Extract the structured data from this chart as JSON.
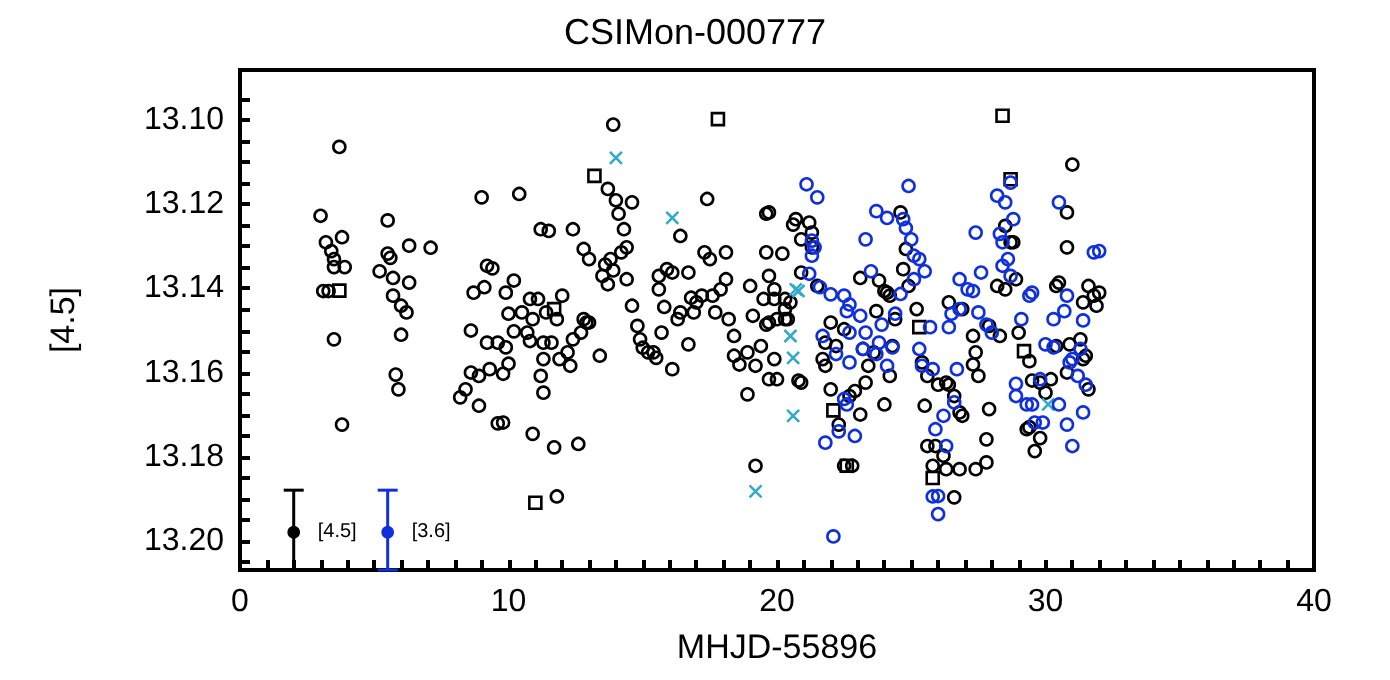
{
  "chart_data": {
    "type": "scatter",
    "title": "CSIMon-000777",
    "xlabel": "MHJD-55896",
    "ylabel": "[4.5]",
    "xlim": [
      0,
      40
    ],
    "xticks": [
      0,
      {
        "value": 1,
        "label": null
      },
      {
        "value": 2,
        "label": null
      },
      {
        "value": 3,
        "label": null
      },
      {
        "value": 4,
        "label": null
      },
      {
        "value": 5,
        "label": null
      },
      {
        "value": 6,
        "label": null
      },
      {
        "value": 7,
        "label": null
      },
      {
        "value": 8,
        "label": null
      },
      {
        "value": 9,
        "label": null
      },
      10,
      {
        "value": 11,
        "label": null
      },
      {
        "value": 12,
        "label": null
      },
      {
        "value": 13,
        "label": null
      },
      {
        "value": 14,
        "label": null
      },
      {
        "value": 15,
        "label": null
      },
      {
        "value": 16,
        "label": null
      },
      {
        "value": 17,
        "label": null
      },
      {
        "value": 18,
        "label": null
      },
      {
        "value": 19,
        "label": null
      },
      20,
      {
        "value": 21,
        "label": null
      },
      {
        "value": 22,
        "label": null
      },
      {
        "value": 23,
        "label": null
      },
      {
        "value": 24,
        "label": null
      },
      {
        "value": 25,
        "label": null
      },
      {
        "value": 26,
        "label": null
      },
      {
        "value": 27,
        "label": null
      },
      {
        "value": 28,
        "label": null
      },
      {
        "value": 29,
        "label": null
      },
      30,
      {
        "value": 31,
        "label": null
      },
      {
        "value": 32,
        "label": null
      },
      {
        "value": 33,
        "label": null
      },
      {
        "value": 34,
        "label": null
      },
      {
        "value": 35,
        "label": null
      },
      {
        "value": 36,
        "label": null
      },
      {
        "value": 37,
        "label": null
      },
      {
        "value": 38,
        "label": null
      },
      {
        "value": 39,
        "label": null
      },
      40
    ],
    "ylim": [
      13.207,
      13.088
    ],
    "yticks": [
      {
        "value": 13.095,
        "label": null
      },
      {
        "value": 13.1,
        "label": "13.10"
      },
      {
        "value": 13.105,
        "label": null
      },
      {
        "value": 13.11,
        "label": null
      },
      {
        "value": 13.115,
        "label": null
      },
      {
        "value": 13.12,
        "label": "13.12"
      },
      {
        "value": 13.125,
        "label": null
      },
      {
        "value": 13.13,
        "label": null
      },
      {
        "value": 13.135,
        "label": null
      },
      {
        "value": 13.14,
        "label": "13.14"
      },
      {
        "value": 13.145,
        "label": null
      },
      {
        "value": 13.15,
        "label": null
      },
      {
        "value": 13.155,
        "label": null
      },
      {
        "value": 13.16,
        "label": "13.16"
      },
      {
        "value": 13.165,
        "label": null
      },
      {
        "value": 13.17,
        "label": null
      },
      {
        "value": 13.175,
        "label": null
      },
      {
        "value": 13.18,
        "label": "13.18"
      },
      {
        "value": 13.185,
        "label": null
      },
      {
        "value": 13.19,
        "label": null
      },
      {
        "value": 13.195,
        "label": null
      },
      {
        "value": 13.2,
        "label": "13.20"
      },
      {
        "value": 13.205,
        "label": null
      }
    ],
    "grid": false,
    "annotations": [
      "[4.5]",
      "[3.6]"
    ],
    "series": [
      {
        "color": "#000000",
        "marker": "circle",
        "x": [
          3.0,
          3.2,
          3.3,
          3.1,
          3.5,
          3.4,
          3.8,
          3.9,
          3.5,
          3.7,
          3.5,
          3.8,
          5.5,
          5.5,
          5.6,
          5.2,
          5.7,
          5.7,
          6.0,
          6.2,
          6.0,
          6.3,
          6.3,
          5.8,
          5.9,
          7.1,
          8.2,
          8.4,
          8.6,
          8.6,
          8.7,
          9.1,
          9.2,
          9.4,
          9.2,
          9.6,
          9.9,
          10.0,
          8.9,
          9.3,
          9.9,
          10.2,
          9.8,
          10.2,
          10.0,
          9.8,
          8.9,
          9.6,
          9.0,
          10.4,
          10.5,
          10.7,
          10.8,
          10.9,
          10.8,
          11.1,
          11.3,
          11.2,
          11.5,
          11.4,
          11.8,
          11.6,
          12.0,
          12.2,
          11.9,
          12.3,
          12.4,
          12.7,
          12.8,
          12.9,
          12.4,
          12.8,
          13.0,
          13.4,
          13.0,
          10.9,
          11.3,
          11.7,
          12.6,
          11.8,
          11.2,
          11.3,
          13.7,
          13.9,
          14.0,
          14.1,
          14.3,
          14.4,
          14.2,
          13.8,
          13.6,
          13.9,
          13.5,
          13.7,
          14.4,
          14.6,
          14.6,
          14.8,
          14.9,
          15.0,
          15.2,
          15.4,
          15.5,
          15.6,
          15.9,
          16.1,
          15.8,
          15.6,
          15.7,
          16.1,
          16.3,
          16.4,
          16.4,
          16.8,
          16.9,
          16.7,
          16.7,
          17.0,
          17.2,
          17.4,
          17.3,
          17.5,
          17.6,
          17.7,
          17.9,
          18.1,
          18.1,
          18.2,
          18.4,
          18.4,
          18.6,
          18.9,
          19.0,
          19.1,
          19.2,
          19.4,
          19.6,
          19.7,
          19.7,
          19.2,
          18.9,
          19.9,
          20.2,
          20.3,
          20.0,
          20.8,
          20.6,
          19.6,
          19.6,
          19.7,
          19.5,
          19.9,
          20.3,
          20.5,
          20.3,
          20.4,
          19.7,
          20.7,
          21.2,
          21.3,
          20.9,
          21.3,
          20.9,
          21.5,
          19.9,
          20.0,
          20.9,
          22.0,
          22.5,
          21.8,
          22.2,
          21.7,
          21.8,
          22.0,
          22.3,
          22.7,
          22.9,
          23.1,
          23.3,
          23.4,
          23.2,
          23.6,
          23.7,
          24.0,
          24.1,
          24.2,
          23.1,
          23.8,
          24.6,
          24.8,
          24.7,
          24.9,
          24.4,
          24.3,
          24.2,
          24.0,
          25.2,
          25.4,
          25.6,
          25.5,
          26.0,
          26.3,
          26.4,
          26.6,
          26.8,
          26.9,
          25.6,
          25.9,
          25.8,
          26.2,
          26.3,
          26.8,
          27.4,
          27.8,
          26.6,
          26.4,
          26.9,
          27.3,
          27.4,
          27.3,
          27.5,
          27.9,
          27.8,
          27.9,
          28.3,
          28.2,
          28.5,
          28.9,
          28.5,
          28.7,
          28.8,
          29.0,
          29.4,
          29.5,
          29.8,
          29.3,
          29.4,
          29.6,
          29.8,
          30.0,
          30.2,
          30.4,
          30.4,
          30.5,
          30.8,
          30.8,
          31.0,
          30.8,
          30.9,
          31.3,
          31.4,
          31.5,
          31.6,
          31.4,
          31.6,
          31.8,
          31.9,
          32.0,
          22.5,
          22.8
        ],
        "values": [
          13.1227,
          13.129,
          13.1406,
          13.1406,
          13.133,
          13.1311,
          13.1278,
          13.1349,
          13.1349,
          13.1063,
          13.1521,
          13.1724,
          13.1238,
          13.1317,
          13.1327,
          13.1359,
          13.1375,
          13.1417,
          13.1441,
          13.1457,
          13.151,
          13.1298,
          13.1386,
          13.1605,
          13.164,
          13.1303,
          13.1659,
          13.164,
          13.16,
          13.15,
          13.141,
          13.1397,
          13.1346,
          13.1352,
          13.1529,
          13.1529,
          13.154,
          13.1579,
          13.1608,
          13.1592,
          13.141,
          13.1381,
          13.1603,
          13.1502,
          13.146,
          13.1719,
          13.1679,
          13.1721,
          13.1183,
          13.1175,
          13.1457,
          13.1505,
          13.1525,
          13.1473,
          13.1425,
          13.1425,
          13.1529,
          13.1259,
          13.1263,
          13.1457,
          13.1473,
          13.1529,
          13.1417,
          13.1552,
          13.1568,
          13.1584,
          13.1521,
          13.1505,
          13.1473,
          13.1481,
          13.1259,
          13.1306,
          13.133,
          13.156,
          13.1481,
          13.1746,
          13.1648,
          13.1778,
          13.177,
          13.1895,
          13.1608,
          13.1568,
          13.1163,
          13.101,
          13.119,
          13.1222,
          13.1259,
          13.1302,
          13.1314,
          13.133,
          13.1343,
          13.1357,
          13.137,
          13.139,
          13.1378,
          13.1441,
          13.1195,
          13.1489,
          13.1521,
          13.1541,
          13.1552,
          13.1552,
          13.1565,
          13.137,
          13.1354,
          13.1362,
          13.1444,
          13.1402,
          13.1505,
          13.1592,
          13.1473,
          13.1457,
          13.1275,
          13.1422,
          13.1457,
          13.1533,
          13.1362,
          13.1433,
          13.1417,
          13.1187,
          13.1314,
          13.133,
          13.1417,
          13.1457,
          13.1402,
          13.1378,
          13.1314,
          13.1473,
          13.1513,
          13.156,
          13.1581,
          13.1552,
          13.1394,
          13.1465,
          13.1584,
          13.1537,
          13.1486,
          13.1616,
          13.1219,
          13.1822,
          13.1652,
          13.1402,
          13.1317,
          13.1473,
          13.1473,
          13.1619,
          13.1248,
          13.1222,
          13.1314,
          13.137,
          13.1425,
          13.1425,
          13.1425,
          13.1433,
          13.1449,
          13.1473,
          13.1481,
          13.1235,
          13.1243,
          13.1267,
          13.1283,
          13.1302,
          13.1362,
          13.1394,
          13.1568,
          13.1616,
          13.1624,
          13.1481,
          13.1497,
          13.1529,
          13.1537,
          13.1568,
          13.1584,
          13.164,
          13.1724,
          13.1656,
          13.1644,
          13.17,
          13.1624,
          13.1584,
          13.1544,
          13.1552,
          13.1454,
          13.1406,
          13.141,
          13.1417,
          13.1375,
          13.1381,
          13.1219,
          13.1306,
          13.1354,
          13.1394,
          13.1473,
          13.1537,
          13.1608,
          13.1676,
          13.1449,
          13.1576,
          13.1608,
          13.1679,
          13.1629,
          13.1624,
          13.1629,
          13.1656,
          13.1695,
          13.1703,
          13.1775,
          13.1775,
          13.1822,
          13.1798,
          13.183,
          13.183,
          13.183,
          13.1814,
          13.1897,
          13.1433,
          13.1449,
          13.1513,
          13.1552,
          13.1581,
          13.1608,
          13.1687,
          13.1759,
          13.1489,
          13.1513,
          13.1394,
          13.1402,
          13.1378,
          13.1251,
          13.129,
          13.129,
          13.1505,
          13.1573,
          13.1619,
          13.1624,
          13.1735,
          13.173,
          13.1787,
          13.1756,
          13.1648,
          13.1616,
          13.1537,
          13.1394,
          13.1386,
          13.1219,
          13.1302,
          13.1105,
          13.16,
          13.1533,
          13.1521,
          13.1568,
          13.156,
          13.164,
          13.1433,
          13.1394,
          13.1417,
          13.1441,
          13.141,
          13.1822,
          13.1822
        ]
      },
      {
        "color": "#000000",
        "marker": "square",
        "x": [
          3.7,
          11.7,
          11.0,
          13.2,
          17.8,
          22.1,
          25.3,
          25.8,
          28.7,
          29.2,
          28.4,
          22.6
        ],
        "values": [
          13.1405,
          13.1449,
          13.191,
          13.1132,
          13.0997,
          13.169,
          13.1492,
          13.1851,
          13.114,
          13.1549,
          13.0989,
          13.1822
        ]
      },
      {
        "color": "#33aacc",
        "marker": "cross",
        "x": [
          14.0,
          16.1,
          19.2,
          20.5,
          20.6,
          20.6,
          20.7,
          20.8,
          30.1
        ],
        "values": [
          13.1089,
          13.1232,
          13.1883,
          13.1513,
          13.1565,
          13.1703,
          13.1402,
          13.1406,
          13.1676
        ]
      },
      {
        "color": "#1030e0",
        "marker": "circle",
        "x": [
          21.1,
          21.5,
          21.3,
          21.3,
          21.2,
          21.4,
          21.6,
          22.0,
          22.5,
          22.7,
          22.6,
          23.1,
          23.3,
          23.7,
          24.1,
          24.7,
          24.8,
          25.0,
          25.1,
          25.3,
          25.5,
          25.1,
          24.9,
          24.6,
          23.5,
          23.9,
          23.3,
          22.7,
          21.7,
          22.2,
          22.7,
          23.2,
          23.7,
          23.8,
          24.3,
          24.1,
          24.4,
          25.3,
          25.4,
          25.8,
          22.5,
          22.6,
          21.8,
          22.3,
          22.9,
          22.1,
          25.7,
          26.4,
          26.5,
          26.8,
          26.8,
          27.1,
          27.3,
          27.4,
          27.5,
          27.6,
          27.8,
          28.0,
          28.2,
          28.3,
          28.4,
          28.5,
          28.7,
          28.8,
          28.4,
          28.6,
          28.7,
          29.1,
          29.4,
          29.5,
          26.6,
          26.7,
          26.2,
          25.9,
          26.3,
          25.8,
          26.0,
          26.0,
          28.9,
          28.9,
          29.3,
          29.5,
          29.6,
          29.9,
          29.8,
          30.0,
          30.3,
          30.3,
          30.5,
          30.7,
          30.8,
          30.9,
          31.0,
          31.3,
          31.2,
          31.4,
          31.5,
          31.4,
          30.8,
          31.0,
          31.8,
          32.0,
          30.5
        ],
        "values": [
          13.1152,
          13.1183,
          13.1286,
          13.1322,
          13.1365,
          13.1302,
          13.1397,
          13.1414,
          13.1417,
          13.1438,
          13.1454,
          13.1465,
          13.1283,
          13.1216,
          13.1232,
          13.1235,
          13.1256,
          13.1283,
          13.1322,
          13.133,
          13.1359,
          13.1378,
          13.1156,
          13.1413,
          13.1359,
          13.1486,
          13.1505,
          13.1505,
          13.1513,
          13.1556,
          13.1576,
          13.1544,
          13.1556,
          13.1529,
          13.154,
          13.1584,
          13.146,
          13.1544,
          13.1584,
          13.1592,
          13.1663,
          13.1676,
          13.1767,
          13.174,
          13.1751,
          13.199,
          13.1492,
          13.1492,
          13.146,
          13.1449,
          13.1378,
          13.1402,
          13.1406,
          13.1267,
          13.1457,
          13.1362,
          13.1486,
          13.1505,
          13.1179,
          13.127,
          13.129,
          13.1195,
          13.1148,
          13.1235,
          13.1346,
          13.133,
          13.137,
          13.1473,
          13.1417,
          13.141,
          13.1671,
          13.1592,
          13.1703,
          13.1735,
          13.1775,
          13.1895,
          13.1894,
          13.1937,
          13.1627,
          13.1656,
          13.1676,
          13.1676,
          13.1719,
          13.1719,
          13.1616,
          13.1533,
          13.154,
          13.1473,
          13.1195,
          13.1454,
          13.1417,
          13.1576,
          13.1568,
          13.1544,
          13.1608,
          13.1476,
          13.1629,
          13.1695,
          13.1724,
          13.1775,
          13.1314,
          13.1311,
          13.1676
        ]
      },
      {
        "color": "#000000",
        "marker": "circle",
        "x": [
          2.0
        ],
        "values": [
          13.198
        ],
        "errors": [
          [
            13.188,
            13.207
          ]
        ]
      },
      {
        "color": "#1030e0",
        "marker": "circle",
        "x": [
          5.5
        ],
        "values": [
          13.198
        ],
        "errors": [
          [
            13.188,
            13.207
          ]
        ]
      }
    ]
  }
}
